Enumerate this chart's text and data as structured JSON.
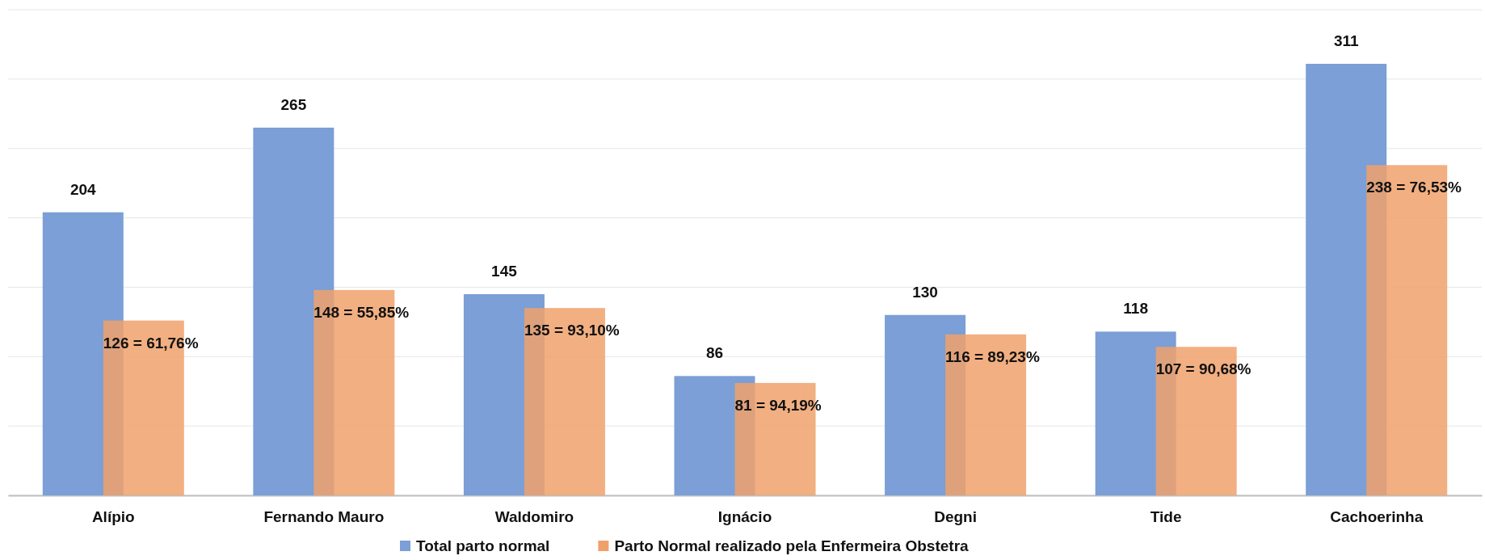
{
  "chart_data": {
    "type": "bar",
    "categories": [
      "Alípio",
      "Fernando  Mauro",
      "Waldomiro",
      "Ignácio",
      "Degni",
      "Tide",
      "Cachoerinha"
    ],
    "series": [
      {
        "name": "Total parto normal",
        "color": "#7b9fd6",
        "values": [
          204,
          265,
          145,
          86,
          130,
          118,
          311
        ],
        "value_labels": [
          "204",
          "265",
          "145",
          "86",
          "130",
          "118",
          "311"
        ]
      },
      {
        "name": "Parto Normal realizado pela Enfermeira Obstetra",
        "color": "#f0a16b",
        "values": [
          126,
          148,
          135,
          81,
          116,
          107,
          238
        ],
        "value_labels": [
          "126 = 61,76%",
          "148 = 55,85%",
          "135 = 93,10%",
          "81 = 94,19%",
          "116 = 89,23%",
          "107 = 90,68%",
          "238 = 76,53%"
        ]
      }
    ],
    "ylim": [
      0,
      350
    ],
    "yticks": [
      {
        "value": 0,
        "label": null
      },
      {
        "value": 50,
        "label": null
      },
      {
        "value": 100,
        "label": null
      },
      {
        "value": 150,
        "label": null
      },
      {
        "value": 200,
        "label": null
      },
      {
        "value": 250,
        "label": null
      },
      {
        "value": 300,
        "label": null
      },
      {
        "value": 350,
        "label": null
      }
    ],
    "tick_labels": "x",
    "grid": "y",
    "legend": "bottom"
  }
}
